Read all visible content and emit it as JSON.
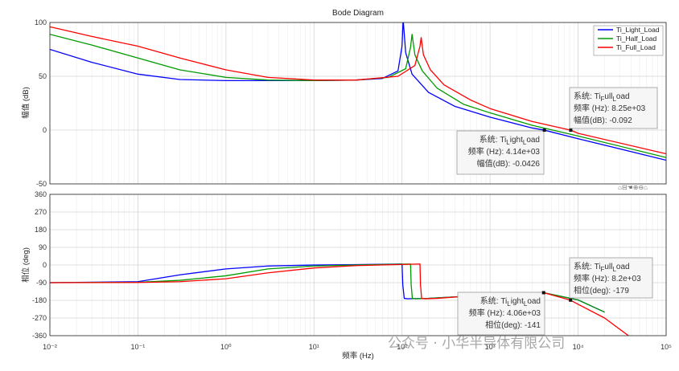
{
  "chart_data": {
    "type": "line",
    "title": "Bode Diagram",
    "xlabel": "频率 (Hz)",
    "xscale": "log",
    "xlim": [
      0.01,
      100000
    ],
    "x_tick_labels": [
      "10⁻²",
      "10⁻¹",
      "10⁰",
      "10¹",
      "10²",
      "10³",
      "10⁴",
      "10⁵"
    ],
    "legend_placement": "top-right",
    "legend": [
      "Ti_Light_Load",
      "Ti_Half_Load",
      "Ti_Full_Load"
    ],
    "colors": {
      "Ti_Light_Load": "#0000ff",
      "Ti_Half_Load": "#009a00",
      "Ti_Full_Load": "#ff0000"
    },
    "magnitude": {
      "ylabel": "幅值 (dB)",
      "ylim": [
        -50,
        100
      ],
      "yticks": [
        -50,
        0,
        50,
        100
      ],
      "series": [
        {
          "name": "Ti_Light_Load",
          "x": [
            0.01,
            0.03,
            0.1,
            0.3,
            1,
            3,
            10,
            30,
            60,
            90,
            100,
            103,
            110,
            130,
            200,
            400,
            1000,
            3000,
            4140,
            10000,
            100000
          ],
          "y": [
            75,
            63,
            52,
            47,
            46,
            46,
            46,
            46.5,
            48,
            55,
            78,
            103,
            72,
            52,
            35,
            22,
            12,
            2,
            -0.0426,
            -8,
            -28
          ]
        },
        {
          "name": "Ti_Half_Load",
          "x": [
            0.01,
            0.03,
            0.1,
            0.3,
            1,
            3,
            10,
            30,
            70,
            110,
            125,
            130,
            140,
            170,
            250,
            500,
            1000,
            3000,
            10000,
            100000
          ],
          "y": [
            89,
            79,
            67,
            56,
            49,
            46.5,
            46,
            46.5,
            49,
            57,
            77,
            89,
            70,
            55,
            39,
            24,
            16,
            4.5,
            -5.5,
            -25.5
          ]
        },
        {
          "name": "Ti_Full_Load",
          "x": [
            0.01,
            0.03,
            0.1,
            0.3,
            1,
            3,
            10,
            30,
            90,
            140,
            160,
            165,
            175,
            210,
            300,
            600,
            1000,
            3000,
            8250,
            10000,
            100000
          ],
          "y": [
            96,
            87,
            78,
            67,
            56,
            49,
            46.5,
            46.5,
            50,
            60,
            78,
            86,
            70,
            56,
            42,
            28,
            20,
            8,
            -0.092,
            -3,
            -22
          ]
        }
      ]
    },
    "phase": {
      "ylabel": "相位 (deg)",
      "ylim": [
        -360,
        360
      ],
      "yticks": [
        -360,
        -270,
        -180,
        -90,
        0,
        90,
        180,
        270,
        360
      ],
      "series": [
        {
          "name": "Ti_Light_Load",
          "x": [
            0.01,
            0.1,
            0.3,
            1,
            3,
            10,
            30,
            100,
            102,
            106,
            115,
            200,
            500,
            1000,
            2000,
            4060,
            10000,
            20000
          ],
          "y": [
            -90,
            -85,
            -50,
            -20,
            -5,
            0,
            2,
            5,
            -100,
            -170,
            -172,
            -170,
            -160,
            -150,
            -143,
            -141,
            -178,
            -240
          ]
        },
        {
          "name": "Ti_Half_Load",
          "x": [
            0.01,
            0.1,
            0.3,
            1,
            3,
            10,
            30,
            125,
            127,
            131,
            140,
            200,
            500,
            1000,
            2000,
            4060,
            10000,
            20000
          ],
          "y": [
            -90,
            -88,
            -78,
            -55,
            -20,
            -5,
            0,
            5,
            -100,
            -170,
            -172,
            -170,
            -160,
            -150,
            -143,
            -141,
            -178,
            -240
          ]
        },
        {
          "name": "Ti_Full_Load",
          "x": [
            0.01,
            0.1,
            0.3,
            1,
            3,
            10,
            30,
            160,
            162,
            167,
            180,
            250,
            500,
            1000,
            2000,
            4060,
            8200,
            10000,
            20000,
            40000
          ],
          "y": [
            -90,
            -89,
            -85,
            -70,
            -40,
            -15,
            -3,
            5,
            -100,
            -170,
            -172,
            -170,
            -160,
            -150,
            -143,
            -141,
            -179,
            -200,
            -270,
            -370
          ]
        }
      ]
    },
    "annotations": [
      {
        "id": "mag-full",
        "panel": "magnitude",
        "series": "Ti_Full_Load",
        "x": 8250,
        "y": -0.092,
        "lines": [
          {
            "label": "系统: ",
            "name": "Ti",
            "sub": "F",
            "rest": "ull",
            "sub2": "L",
            "tail": "oad"
          },
          {
            "label": "频率 (Hz): ",
            "value": "8.25e+03"
          },
          {
            "label": "幅值(dB): ",
            "value": "-0.092"
          }
        ]
      },
      {
        "id": "mag-light",
        "panel": "magnitude",
        "series": "Ti_Light_Load",
        "x": 4140,
        "y": -0.0426,
        "lines": [
          {
            "label": "系统: ",
            "name": "Ti",
            "sub": "L",
            "rest": "ight",
            "sub2": "L",
            "tail": "oad"
          },
          {
            "label": "频率 (Hz): ",
            "value": "4.14e+03"
          },
          {
            "label": "幅值(dB): ",
            "value": "-0.0426"
          }
        ]
      },
      {
        "id": "ph-full",
        "panel": "phase",
        "series": "Ti_Full_Load",
        "x": 8200,
        "y": -179,
        "lines": [
          {
            "label": "系统: ",
            "name": "Ti",
            "sub": "F",
            "rest": "ull",
            "sub2": "L",
            "tail": "oad"
          },
          {
            "label": "频率 (Hz): ",
            "value": "8.2e+03"
          },
          {
            "label": "相位(deg): ",
            "value": "-179"
          }
        ]
      },
      {
        "id": "ph-light",
        "panel": "phase",
        "series": "Ti_Light_Load",
        "x": 4060,
        "y": -141,
        "lines": [
          {
            "label": "系统: ",
            "name": "Ti",
            "sub": "L",
            "rest": "ight",
            "sub2": "L",
            "tail": "oad"
          },
          {
            "label": "频率 (Hz): ",
            "value": "4.06e+03"
          },
          {
            "label": "相位(deg): ",
            "value": "-141"
          }
        ]
      }
    ],
    "watermark": "公众号 · 小华半导体有限公司"
  }
}
